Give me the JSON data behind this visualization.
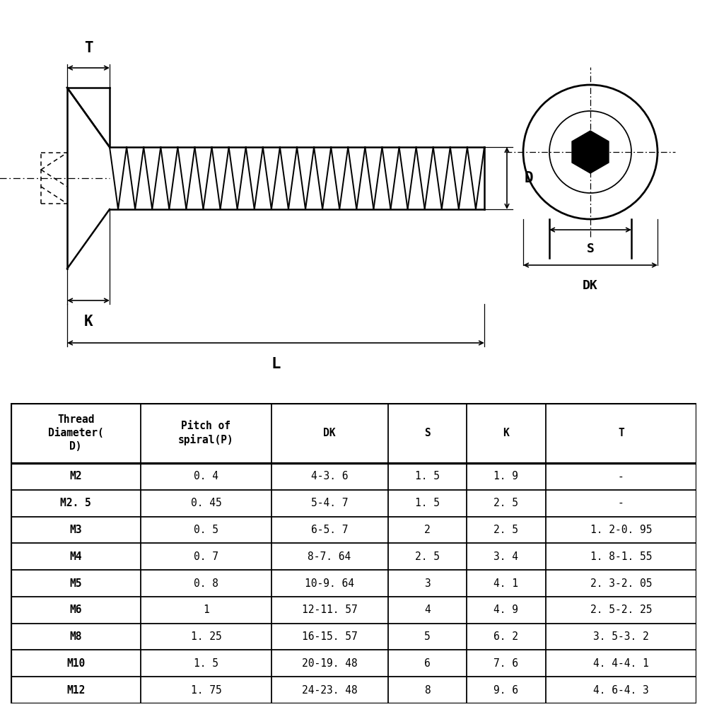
{
  "bg_color": "#ffffff",
  "line_color": "#000000",
  "table_headers": [
    "Thread\nDiameter(\nD)",
    "Pitch of\nspiral(P)",
    "DK",
    "S",
    "K",
    "T"
  ],
  "table_data": [
    [
      "M2",
      "0. 4",
      "4-3. 6",
      "1. 5",
      "1. 9",
      "-"
    ],
    [
      "M2. 5",
      "0. 45",
      "5-4. 7",
      "1. 5",
      "2. 5",
      "-"
    ],
    [
      "M3",
      "0. 5",
      "6-5. 7",
      "2",
      "2. 5",
      "1. 2-0. 95"
    ],
    [
      "M4",
      "0. 7",
      "8-7. 64",
      "2. 5",
      "3. 4",
      "1. 8-1. 55"
    ],
    [
      "M5",
      "0. 8",
      "10-9. 64",
      "3",
      "4. 1",
      "2. 3-2. 05"
    ],
    [
      "M6",
      "1",
      "12-11. 57",
      "4",
      "4. 9",
      "2. 5-2. 25"
    ],
    [
      "M8",
      "1. 25",
      "16-15. 57",
      "5",
      "6. 2",
      "3. 5-3. 2"
    ],
    [
      "M10",
      "1. 5",
      "20-19. 48",
      "6",
      "7. 6",
      "4. 4-4. 1"
    ],
    [
      "M12",
      "1. 75",
      "24-23. 48",
      "8",
      "9. 6",
      "4. 6-4. 3"
    ]
  ],
  "diagram_labels": {
    "T": "T",
    "D": "D",
    "K": "K",
    "L": "L",
    "S": "S",
    "DK": "DK"
  }
}
